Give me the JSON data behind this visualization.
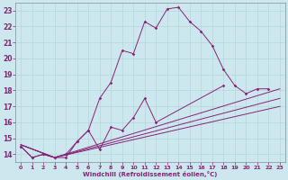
{
  "xlabel": "Windchill (Refroidissement éolien,°C)",
  "bg_color": "#cce8ee",
  "line_color": "#882277",
  "xlim": [
    -0.5,
    23.5
  ],
  "ylim": [
    13.5,
    23.5
  ],
  "xticks": [
    0,
    1,
    2,
    3,
    4,
    5,
    6,
    7,
    8,
    9,
    10,
    11,
    12,
    13,
    14,
    15,
    16,
    17,
    18,
    19,
    20,
    21,
    22,
    23
  ],
  "yticks": [
    14,
    15,
    16,
    17,
    18,
    19,
    20,
    21,
    22,
    23
  ],
  "line1_x": [
    0,
    1,
    2,
    3,
    4,
    5,
    6,
    7,
    8,
    9,
    10,
    11,
    12,
    13,
    14,
    15,
    16,
    17,
    18,
    19,
    20,
    21,
    22
  ],
  "line1_y": [
    14.5,
    13.8,
    14.0,
    13.8,
    13.8,
    14.8,
    15.5,
    17.5,
    18.5,
    20.5,
    20.3,
    22.3,
    21.9,
    23.1,
    23.2,
    22.3,
    21.7,
    20.8,
    19.3,
    18.3,
    17.8,
    18.1,
    18.1
  ],
  "line2_x": [
    0,
    1,
    2,
    3,
    4,
    5,
    6,
    7,
    8,
    9,
    10,
    11,
    12,
    18
  ],
  "line2_y": [
    14.5,
    13.8,
    14.0,
    13.8,
    14.0,
    14.8,
    15.5,
    14.3,
    15.7,
    15.5,
    16.3,
    17.5,
    16.0,
    18.3
  ],
  "line3_x": [
    0,
    3,
    23
  ],
  "line3_y": [
    14.6,
    13.8,
    18.1
  ],
  "line4_x": [
    0,
    3,
    23
  ],
  "line4_y": [
    14.6,
    13.8,
    17.5
  ],
  "line5_x": [
    0,
    3,
    23
  ],
  "line5_y": [
    14.6,
    13.8,
    17.0
  ]
}
